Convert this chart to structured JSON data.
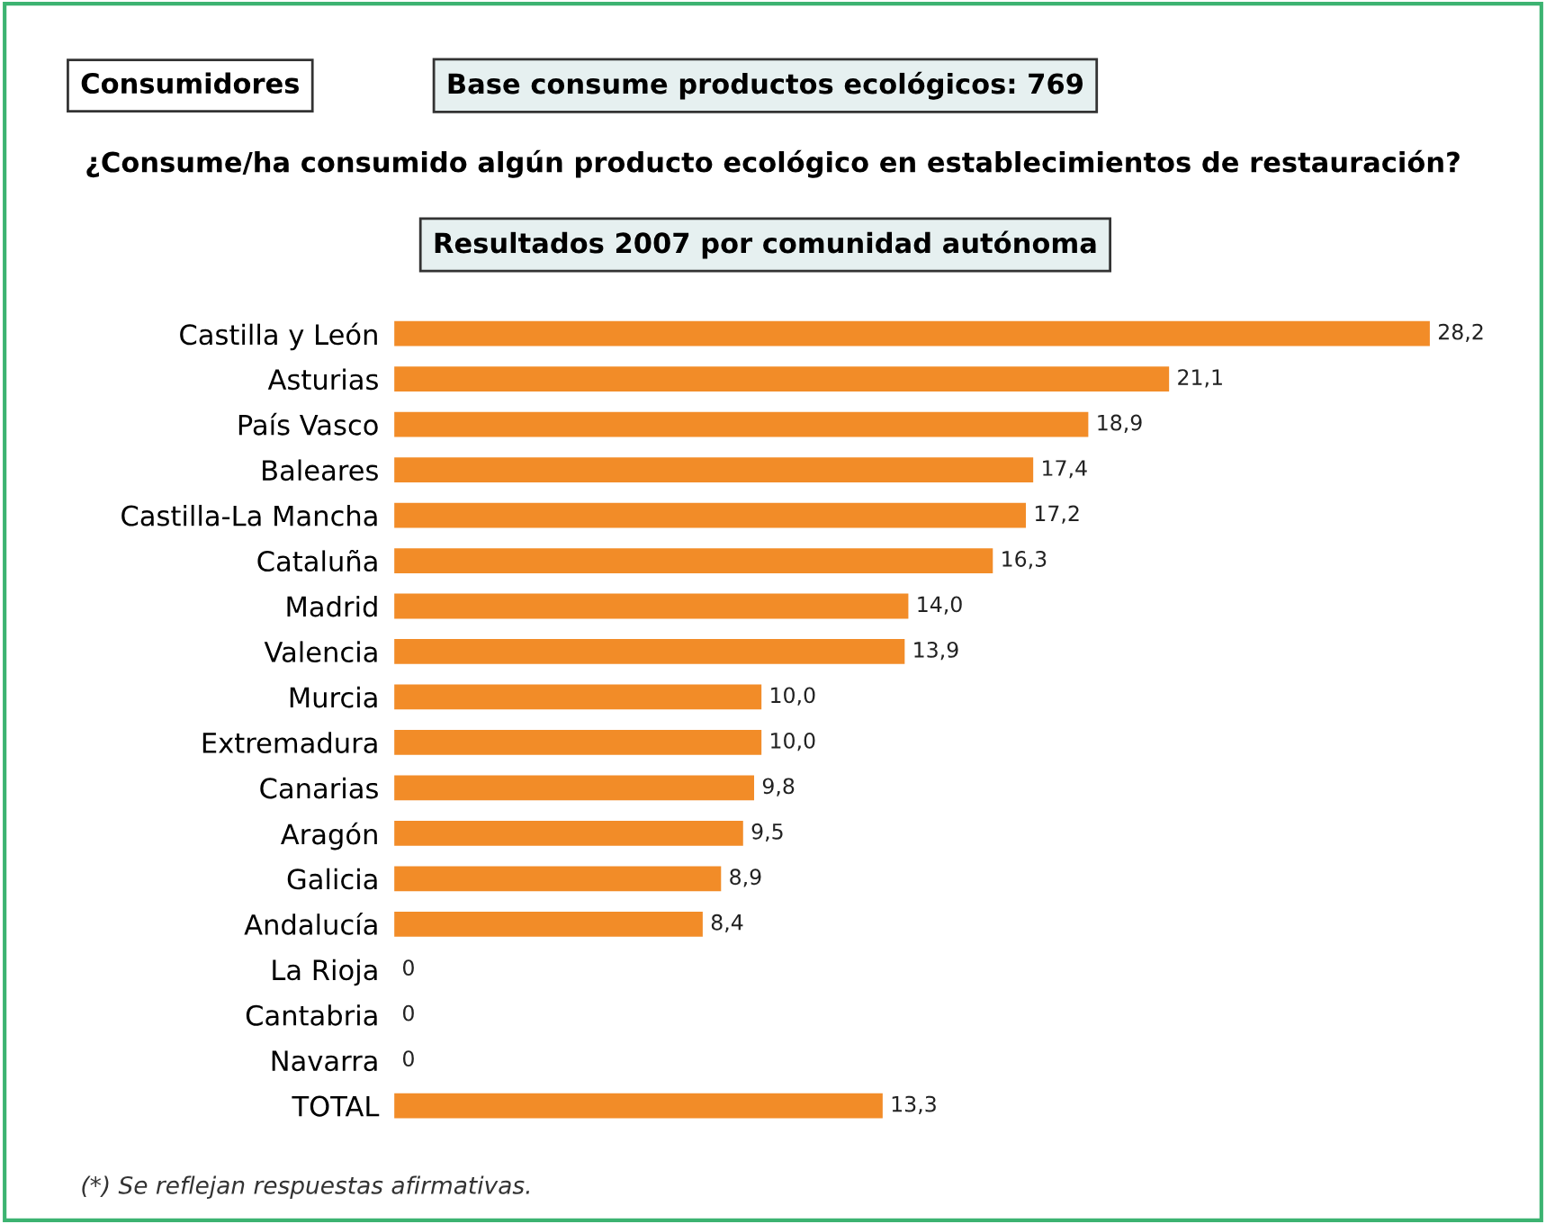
{
  "chart_data": {
    "type": "bar",
    "orientation": "horizontal",
    "title": "¿Consume/ha consumido algún producto ecológico en establecimientos de restauración?",
    "subtitle": "Resultados 2007 por comunidad autónoma",
    "annotations": [
      "Consumidores",
      "Base consume productos ecológicos: 769",
      "(*) Se reflejan respuestas afirmativas."
    ],
    "categories": [
      "Castilla y León",
      "Asturias",
      "País Vasco",
      "Baleares",
      "Castilla-La Mancha",
      "Cataluña",
      "Madrid",
      "Valencia",
      "Murcia",
      "Extremadura",
      "Canarias",
      "Aragón",
      "Galicia",
      "Andalucía",
      "La Rioja",
      "Cantabria",
      "Navarra",
      "TOTAL"
    ],
    "values": [
      28.2,
      21.1,
      18.9,
      17.4,
      17.2,
      16.3,
      14.0,
      13.9,
      10.0,
      10.0,
      9.8,
      9.5,
      8.9,
      8.4,
      0,
      0,
      0,
      13.3
    ],
    "value_labels": [
      "28,2",
      "21,1",
      "18,9",
      "17,4",
      "17,2",
      "16,3",
      "14,0",
      "13,9",
      "10,0",
      "10,0",
      "9,8",
      "9,5",
      "8,9",
      "8,4",
      "0",
      "0",
      "0",
      "13,3"
    ],
    "color": "#f28c28",
    "grid": false,
    "legend": false
  }
}
